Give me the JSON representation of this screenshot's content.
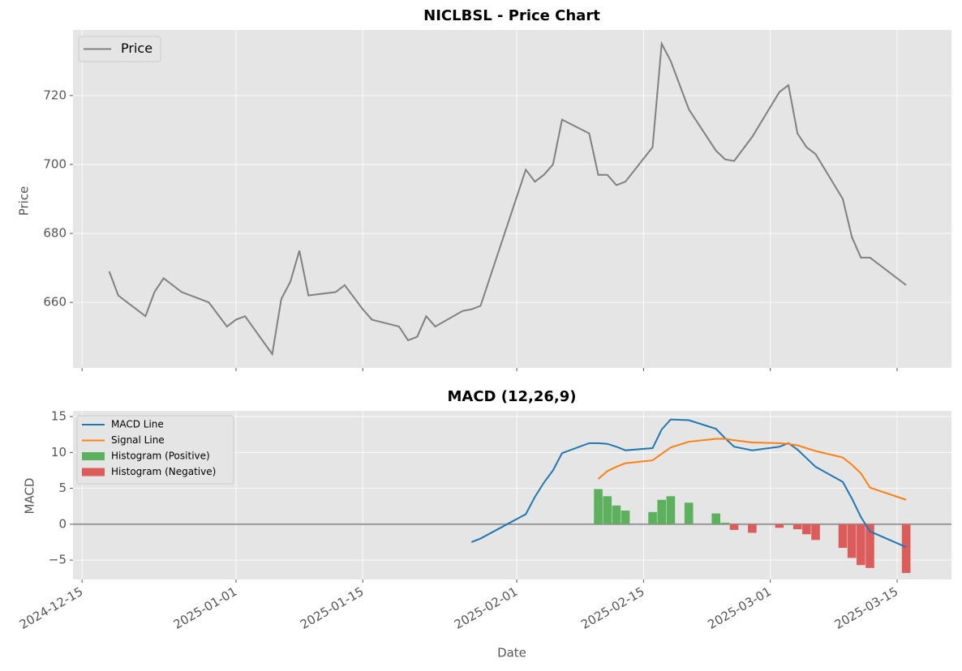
{
  "chart_data": [
    {
      "type": "line",
      "title": "NICLBSL - Price Chart",
      "ylabel": "Price",
      "legend": "upper left",
      "grid": true,
      "x": [
        "2024-12-18",
        "2024-12-19",
        "2024-12-22",
        "2024-12-23",
        "2024-12-24",
        "2024-12-26",
        "2024-12-29",
        "2024-12-31",
        "2025-01-01",
        "2025-01-02",
        "2025-01-05",
        "2025-01-06",
        "2025-01-07",
        "2025-01-08",
        "2025-01-09",
        "2025-01-12",
        "2025-01-13",
        "2025-01-15",
        "2025-01-16",
        "2025-01-19",
        "2025-01-20",
        "2025-01-21",
        "2025-01-22",
        "2025-01-23",
        "2025-01-26",
        "2025-01-27",
        "2025-01-28",
        "2025-02-02",
        "2025-02-03",
        "2025-02-04",
        "2025-02-05",
        "2025-02-06",
        "2025-02-09",
        "2025-02-10",
        "2025-02-11",
        "2025-02-12",
        "2025-02-13",
        "2025-02-16",
        "2025-02-17",
        "2025-02-18",
        "2025-02-20",
        "2025-02-23",
        "2025-02-24",
        "2025-02-25",
        "2025-02-27",
        "2025-03-02",
        "2025-03-03",
        "2025-03-04",
        "2025-03-05",
        "2025-03-06",
        "2025-03-09",
        "2025-03-10",
        "2025-03-11",
        "2025-03-12",
        "2025-03-16"
      ],
      "series": [
        {
          "name": "Price",
          "color": "#808080",
          "values": [
            669,
            662,
            656,
            663,
            667,
            663,
            660,
            653,
            655,
            656,
            645,
            661,
            666,
            675,
            662,
            663,
            665,
            658,
            655,
            653,
            649,
            650,
            656,
            653,
            657.5,
            658,
            659,
            698.5,
            695,
            697,
            700,
            713,
            709,
            697,
            697,
            694,
            695,
            705,
            735,
            730,
            716,
            704,
            701.5,
            701,
            708,
            721,
            723,
            709,
            705,
            703,
            690,
            679,
            673,
            673,
            665
          ]
        }
      ],
      "ylim": [
        641,
        739
      ],
      "yticks": [
        660,
        680,
        700,
        720
      ]
    },
    {
      "type": "macd",
      "title": "MACD (12,26,9)",
      "ylabel": "MACD",
      "xlabel": "Date",
      "legend": "upper left",
      "grid": true,
      "x": [
        "2025-01-27",
        "2025-01-28",
        "2025-02-02",
        "2025-02-03",
        "2025-02-04",
        "2025-02-05",
        "2025-02-06",
        "2025-02-09",
        "2025-02-10",
        "2025-02-11",
        "2025-02-12",
        "2025-02-13",
        "2025-02-16",
        "2025-02-17",
        "2025-02-18",
        "2025-02-20",
        "2025-02-23",
        "2025-02-24",
        "2025-02-25",
        "2025-02-27",
        "2025-03-02",
        "2025-03-03",
        "2025-03-04",
        "2025-03-05",
        "2025-03-06",
        "2025-03-09",
        "2025-03-10",
        "2025-03-11",
        "2025-03-12",
        "2025-03-16"
      ],
      "series": [
        {
          "name": "MACD Line",
          "kind": "line",
          "color": "#1f77b4",
          "values": [
            -2.5,
            -2.0,
            1.4,
            3.8,
            5.8,
            7.5,
            9.9,
            11.3,
            11.3,
            11.2,
            10.8,
            10.3,
            10.6,
            13.2,
            14.6,
            14.5,
            13.3,
            12.0,
            10.8,
            10.3,
            10.8,
            11.3,
            10.4,
            9.2,
            8.0,
            5.9,
            3.6,
            1.0,
            -1.0,
            -3.2
          ]
        },
        {
          "name": "Signal Line",
          "kind": "line",
          "color": "#ff7f0e",
          "values": [
            null,
            null,
            null,
            null,
            null,
            null,
            null,
            null,
            6.3,
            7.4,
            8.0,
            8.5,
            8.9,
            9.8,
            10.7,
            11.5,
            11.9,
            11.9,
            11.7,
            11.4,
            11.3,
            11.2,
            11.0,
            10.6,
            10.2,
            9.3,
            8.3,
            7.1,
            5.1,
            3.4
          ]
        },
        {
          "name": "Histogram (Positive)",
          "kind": "bar",
          "color": "#5db05d",
          "values": [
            null,
            null,
            null,
            null,
            null,
            null,
            null,
            null,
            4.9,
            3.9,
            2.6,
            1.9,
            1.7,
            3.4,
            3.9,
            3.0,
            1.5,
            0.2,
            null,
            null,
            null,
            0.1,
            null,
            null,
            null,
            null,
            null,
            null,
            null,
            null
          ]
        },
        {
          "name": "Histogram (Negative)",
          "kind": "bar",
          "color": "#dc5c5c",
          "values": [
            null,
            null,
            null,
            null,
            null,
            null,
            null,
            null,
            null,
            null,
            null,
            null,
            null,
            null,
            null,
            null,
            null,
            null,
            -0.8,
            -1.2,
            -0.5,
            null,
            -0.7,
            -1.4,
            -2.2,
            -3.3,
            -4.7,
            -5.7,
            -6.1,
            -6.8
          ]
        }
      ],
      "ylim": [
        -7.7,
        15.8
      ],
      "yticks": [
        {
          "value": -5,
          "label": "−5"
        },
        0,
        5,
        10,
        15
      ],
      "xlim": [
        "2024-12-14",
        "2025-03-21"
      ],
      "xticks": [
        "2024-12-15",
        "2025-01-01",
        "2025-01-15",
        "2025-02-01",
        "2025-02-15",
        "2025-03-01",
        "2025-03-15"
      ]
    }
  ]
}
